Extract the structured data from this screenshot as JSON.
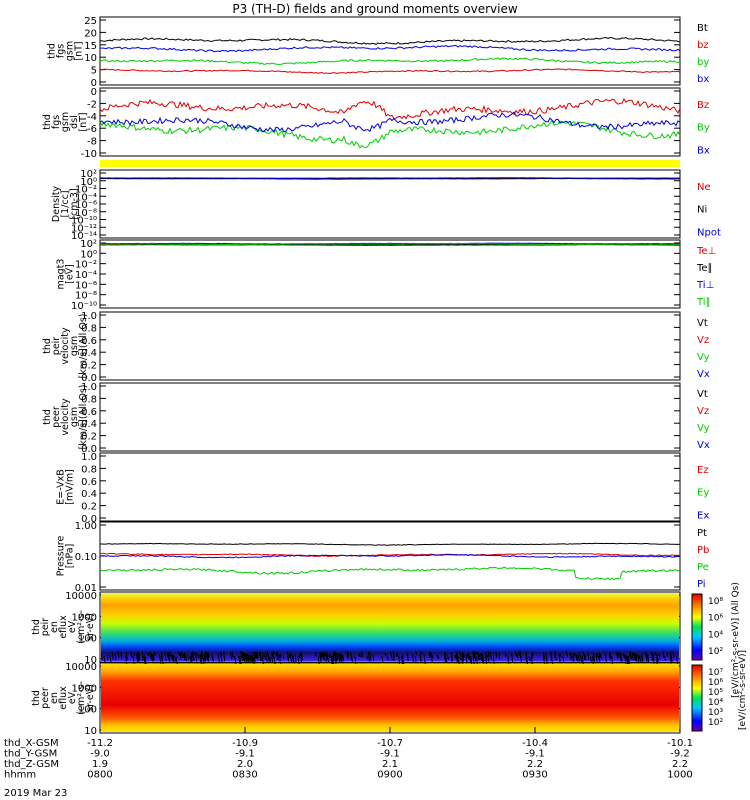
{
  "title": "P3 (TH-D) fields and ground moments overview",
  "date": "2019 Mar 23",
  "colors": {
    "black": "#000000",
    "red": "#e00000",
    "green": "#00cc00",
    "blue": "#0000dd",
    "yellow": "#ffff00"
  },
  "chart_data": [
    {
      "type": "line",
      "id": "fgs_gsm",
      "ylabel": [
        "thd",
        "fgs",
        "gsm",
        "[nT]"
      ],
      "ylim": [
        -1,
        26
      ],
      "yticks": [
        "25",
        "20",
        "15",
        "10",
        "5",
        "0"
      ],
      "series": [
        {
          "name": "Bt",
          "color": "black",
          "base": 16.5,
          "amp": 1.5
        },
        {
          "name": "bz",
          "color": "red",
          "base": 4.5,
          "amp": 1.0
        },
        {
          "name": "by",
          "color": "green",
          "base": 8.5,
          "amp": 1.5
        },
        {
          "name": "bx",
          "color": "blue",
          "base": 13.5,
          "amp": 1.5
        }
      ]
    },
    {
      "type": "line",
      "id": "fgs_dsl",
      "ylabel": [
        "thd",
        "fgs",
        "gsm",
        "dsl",
        "[nT]"
      ],
      "ylim": [
        -11,
        0
      ],
      "yticks": [
        "0",
        "-2",
        "-4",
        "-6",
        "-8",
        "-10"
      ],
      "series": [
        {
          "name": "Bz",
          "color": "red",
          "base": -3.5,
          "amp": 2.0
        },
        {
          "name": "By",
          "color": "green",
          "base": -7.0,
          "amp": 2.0
        },
        {
          "name": "Bx",
          "color": "blue",
          "base": -5.5,
          "amp": 1.8
        }
      ]
    },
    {
      "type": "line",
      "id": "density",
      "ylabel": [
        "Density",
        "[1/cc]",
        "[cm-3]"
      ],
      "ylim": [
        "1e-14",
        "1e4"
      ],
      "yticks": [
        "10²",
        "10⁰",
        "10⁻²",
        "10⁻⁴",
        "10⁻⁶",
        "10⁻⁸",
        "10⁻¹⁰",
        "10⁻¹²",
        "10⁻¹⁴"
      ],
      "series": [
        {
          "name": "Ne",
          "color": "red",
          "base": 0.6,
          "amp": 0.1
        },
        {
          "name": "Ni",
          "color": "black",
          "base": 0.5,
          "amp": 0.1
        },
        {
          "name": "Npot",
          "color": "blue",
          "base": 0.7,
          "amp": 0.1
        }
      ]
    },
    {
      "type": "line",
      "id": "temperature",
      "ylabel": [
        "magt3",
        "[eV]"
      ],
      "ylim": [
        "1e-10",
        "1e4"
      ],
      "yticks": [
        "10²",
        "10⁰",
        "10⁻²",
        "10⁻⁴",
        "10⁻⁶",
        "10⁻⁸",
        "10⁻¹⁰"
      ],
      "series": [
        {
          "name": "Te⊥",
          "color": "red",
          "base": 1.9,
          "amp": 0.1
        },
        {
          "name": "Te∥",
          "color": "black",
          "base": 2.0,
          "amp": 0.1
        },
        {
          "name": "Ti⊥",
          "color": "blue",
          "base": 2.2,
          "amp": 0.1
        },
        {
          "name": "Ti∥",
          "color": "green",
          "base": 2.1,
          "amp": 0.1
        }
      ]
    },
    {
      "type": "line",
      "id": "peir_velocity",
      "ylabel": [
        "thd",
        "peir",
        "velocity",
        "gsm",
        "[km/s](All Qs)"
      ],
      "ylim": [
        0,
        1
      ],
      "yticks": [
        "1.0",
        "0.8",
        "0.6",
        "0.4",
        "0.2",
        "0.0"
      ],
      "series": [
        {
          "name": "Vt",
          "color": "black"
        },
        {
          "name": "Vz",
          "color": "red"
        },
        {
          "name": "Vy",
          "color": "green"
        },
        {
          "name": "Vx",
          "color": "blue"
        }
      ]
    },
    {
      "type": "line",
      "id": "peer_velocity",
      "ylabel": [
        "thd",
        "peer",
        "velocity",
        "gsm",
        "[km/s](All Qs)"
      ],
      "ylim": [
        0,
        1
      ],
      "yticks": [
        "1.0",
        "0.8",
        "0.6",
        "0.4",
        "0.2",
        "0.0"
      ],
      "series": [
        {
          "name": "Vt",
          "color": "black"
        },
        {
          "name": "Vz",
          "color": "red"
        },
        {
          "name": "Vy",
          "color": "green"
        },
        {
          "name": "Vx",
          "color": "blue"
        }
      ]
    },
    {
      "type": "line",
      "id": "efield",
      "ylabel": [
        "E=-VxB",
        "[mV/m]"
      ],
      "ylim": [
        0,
        1
      ],
      "yticks": [
        "1.0",
        "0.8",
        "0.6",
        "0.4",
        "0.2",
        "0.0"
      ],
      "series": [
        {
          "name": "Ez",
          "color": "red"
        },
        {
          "name": "Ey",
          "color": "green"
        },
        {
          "name": "Ex",
          "color": "blue"
        }
      ]
    },
    {
      "type": "line",
      "id": "pressure",
      "ylabel": [
        "Pressure",
        "[nPa]"
      ],
      "ylim": [
        0.01,
        1.0
      ],
      "yticks": [
        "1.00",
        "0.10",
        "0.01"
      ],
      "series": [
        {
          "name": "Pt",
          "color": "black",
          "base": 0.24,
          "amp": 0.02
        },
        {
          "name": "Pb",
          "color": "red",
          "base": 0.11,
          "amp": 0.015
        },
        {
          "name": "Pe",
          "color": "green",
          "base": 0.035,
          "amp": 0.01
        },
        {
          "name": "Pi",
          "color": "blue",
          "base": 0.1,
          "amp": 0.015
        }
      ]
    },
    {
      "type": "heatmap",
      "id": "peir_eflux",
      "ylabel": [
        "thd",
        "peir",
        "en",
        "eflux",
        "eV",
        "(cm²-s-",
        "sr-eV)"
      ],
      "yticks": [
        "10000",
        "1000",
        "100",
        "10"
      ],
      "colorbar_ticks": [
        "10⁸",
        "10⁶",
        "10⁴",
        "10²"
      ],
      "colorbar_label": "[eV/(cm²-s-sr-eV)] (All Qs)"
    },
    {
      "type": "heatmap",
      "id": "peer_eflux",
      "ylabel": [
        "thd",
        "peer",
        "en",
        "eflux",
        "eV",
        "(cm²-s-",
        "sr-eV)"
      ],
      "yticks": [
        "10000",
        "1000",
        "100",
        "10"
      ],
      "colorbar_ticks": [
        "10⁷",
        "10⁶",
        "10⁵",
        "10⁴",
        "10³",
        "10²"
      ],
      "colorbar_label": "[eV/(cm²-s-sr-eV)]"
    }
  ],
  "time_axis": {
    "rows": [
      {
        "label": "thd_X-GSM",
        "values": [
          "-11.2",
          "-10.9",
          "-10.7",
          "-10.4",
          "-10.1"
        ]
      },
      {
        "label": "thd_Y-GSM",
        "values": [
          "-9.0",
          "-9.1",
          "-9.1",
          "-9.1",
          "-9.2"
        ]
      },
      {
        "label": "thd_Z-GSM",
        "values": [
          "1.9",
          "2.0",
          "2.1",
          "2.2",
          "2.2"
        ]
      },
      {
        "label": "hhmm",
        "values": [
          "0800",
          "0830",
          "0900",
          "0930",
          "1000"
        ]
      }
    ]
  }
}
